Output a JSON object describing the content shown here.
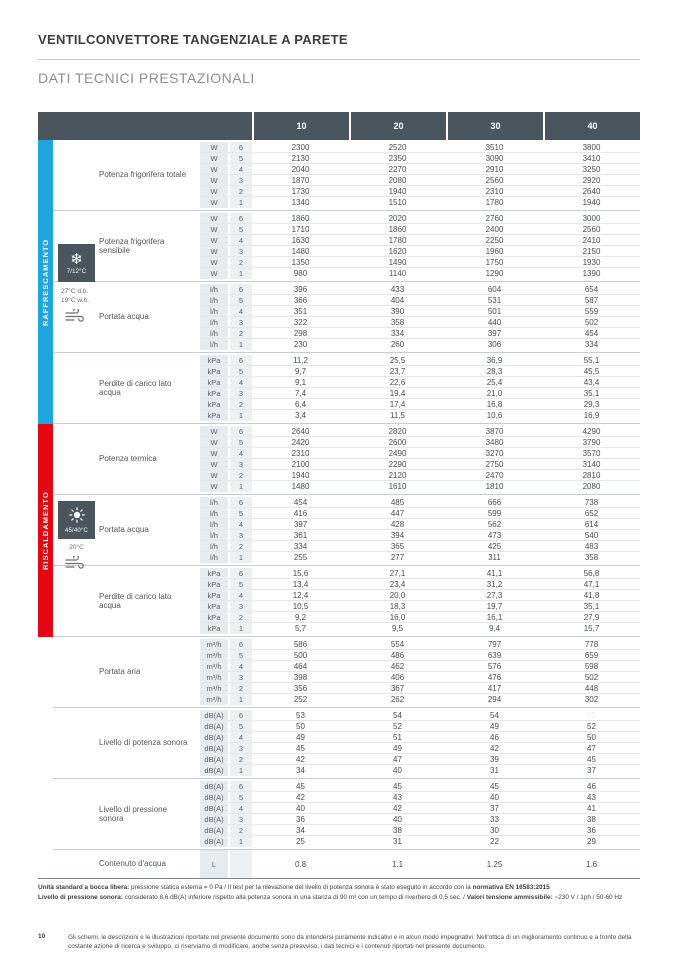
{
  "page": {
    "title": "VENTILCONVETTORE TANGENZIALE A PARETE",
    "subtitle": "DATI TECNICI PRESTAZIONALI",
    "page_number": "10",
    "disclaimer": "Gli schemi, le descrizioni e le illustrazioni riportate nel presente documento sono da intendersi puramente indicativi e in alcun modo impegnativi. Nell'ottica di un miglioramento continuo e a fronte della costante azione di ricerca e sviluppo, ci riserviamo di modificare, anche senza preavviso, i dati tecnici e i contenuti riportati nel presente documento."
  },
  "colors": {
    "cooling_accent": "#1fa5de",
    "heating_accent": "#e30613",
    "header_slate": "#4b555e",
    "unit_column_bg": "#e7ebee"
  },
  "icons": {
    "cooling": "snowflake-icon",
    "heating": "sun-icon",
    "air": "wind-icon"
  },
  "cooling": {
    "label": "RAFFRESCAMENTO",
    "box_temp": "7/12°C",
    "cond1": "27°C d.b.",
    "cond2": "19°C w.b."
  },
  "heating": {
    "label": "RISCALDAMENTO",
    "box_temp": "45/40°C",
    "cond1": "20°C"
  },
  "table": {
    "columns": [
      "10",
      "20",
      "30",
      "40"
    ],
    "speeds": [
      "6",
      "5",
      "4",
      "3",
      "2",
      "1"
    ],
    "sections": [
      {
        "group": "cooling",
        "label": "Potenza frigorifera totale",
        "unit": "W",
        "rows": [
          [
            "2300",
            "2520",
            "3510",
            "3800"
          ],
          [
            "2130",
            "2350",
            "3090",
            "3410"
          ],
          [
            "2040",
            "2270",
            "2910",
            "3250"
          ],
          [
            "1870",
            "2080",
            "2560",
            "2920"
          ],
          [
            "1730",
            "1940",
            "2310",
            "2640"
          ],
          [
            "1340",
            "1510",
            "1780",
            "1940"
          ]
        ]
      },
      {
        "group": "cooling",
        "label": "Potenza frigorifera sensibile",
        "unit": "W",
        "rows": [
          [
            "1860",
            "2020",
            "2760",
            "3000"
          ],
          [
            "1710",
            "1860",
            "2400",
            "2560"
          ],
          [
            "1630",
            "1780",
            "2250",
            "2410"
          ],
          [
            "1480",
            "1620",
            "1960",
            "2150"
          ],
          [
            "1350",
            "1490",
            "1750",
            "1930"
          ],
          [
            "980",
            "1140",
            "1290",
            "1390"
          ]
        ]
      },
      {
        "group": "cooling",
        "label": "Portata acqua",
        "unit": "l/h",
        "rows": [
          [
            "396",
            "433",
            "604",
            "654"
          ],
          [
            "366",
            "404",
            "531",
            "587"
          ],
          [
            "351",
            "390",
            "501",
            "559"
          ],
          [
            "322",
            "358",
            "440",
            "502"
          ],
          [
            "298",
            "334",
            "397",
            "454"
          ],
          [
            "230",
            "260",
            "306",
            "334"
          ]
        ]
      },
      {
        "group": "cooling",
        "label": "Perdite di carico lato acqua",
        "unit": "kPa",
        "rows": [
          [
            "11,2",
            "25,5",
            "36,9",
            "55,1"
          ],
          [
            "9,7",
            "23,7",
            "28,3",
            "45,5"
          ],
          [
            "9,1",
            "22,6",
            "25,4",
            "43,4"
          ],
          [
            "7,4",
            "19,4",
            "21,0",
            "35,1"
          ],
          [
            "6,4",
            "17,4",
            "16,8",
            "29,3"
          ],
          [
            "3,4",
            "11,5",
            "10,6",
            "16,9"
          ]
        ]
      },
      {
        "group": "heating",
        "label": "Potenza termica",
        "unit": "W",
        "rows": [
          [
            "2640",
            "2820",
            "3870",
            "4290"
          ],
          [
            "2420",
            "2600",
            "3480",
            "3790"
          ],
          [
            "2310",
            "2490",
            "3270",
            "3570"
          ],
          [
            "2100",
            "2290",
            "2750",
            "3140"
          ],
          [
            "1940",
            "2120",
            "2470",
            "2810"
          ],
          [
            "1480",
            "1610",
            "1810",
            "2080"
          ]
        ]
      },
      {
        "group": "heating",
        "label": "Portata acqua",
        "unit": "l/h",
        "rows": [
          [
            "454",
            "485",
            "666",
            "738"
          ],
          [
            "416",
            "447",
            "599",
            "652"
          ],
          [
            "397",
            "428",
            "562",
            "614"
          ],
          [
            "361",
            "394",
            "473",
            "540"
          ],
          [
            "334",
            "365",
            "425",
            "483"
          ],
          [
            "255",
            "277",
            "311",
            "358"
          ]
        ]
      },
      {
        "group": "heating",
        "label": "Perdite di carico lato acqua",
        "unit": "kPa",
        "rows": [
          [
            "15,6",
            "27,1",
            "41,1",
            "56,8"
          ],
          [
            "13,4",
            "23,4",
            "31,2",
            "47,1"
          ],
          [
            "12,4",
            "20,0",
            "27,3",
            "41,8"
          ],
          [
            "10,5",
            "18,3",
            "19,7",
            "35,1"
          ],
          [
            "9,2",
            "16,0",
            "16,1",
            "27,9"
          ],
          [
            "5,7",
            "9,5",
            "9,4",
            "15,7"
          ]
        ]
      },
      {
        "group": "none",
        "label": "Portata aria",
        "unit": "m³/h",
        "rows": [
          [
            "586",
            "554",
            "797",
            "778"
          ],
          [
            "500",
            "486",
            "639",
            "659"
          ],
          [
            "464",
            "462",
            "576",
            "598"
          ],
          [
            "398",
            "406",
            "476",
            "502"
          ],
          [
            "356",
            "367",
            "417",
            "448"
          ],
          [
            "252",
            "262",
            "294",
            "302"
          ]
        ]
      },
      {
        "group": "none",
        "label": "Livello di potenza sonora",
        "unit": "dB(A)",
        "faint_cells": [
          [
            0,
            3
          ]
        ],
        "rows": [
          [
            "53",
            "54",
            "54",
            "55"
          ],
          [
            "50",
            "52",
            "49",
            "52"
          ],
          [
            "49",
            "51",
            "46",
            "50"
          ],
          [
            "45",
            "49",
            "42",
            "47"
          ],
          [
            "42",
            "47",
            "39",
            "45"
          ],
          [
            "34",
            "40",
            "31",
            "37"
          ]
        ]
      },
      {
        "group": "none",
        "label": "Livello di pressione sonora",
        "unit": "dB(A)",
        "rows": [
          [
            "45",
            "45",
            "45",
            "46"
          ],
          [
            "42",
            "43",
            "40",
            "43"
          ],
          [
            "40",
            "42",
            "37",
            "41"
          ],
          [
            "36",
            "40",
            "33",
            "38"
          ],
          [
            "34",
            "38",
            "30",
            "36"
          ],
          [
            "25",
            "31",
            "22",
            "29"
          ]
        ]
      }
    ],
    "water_content": {
      "label": "Contenuto d'acqua",
      "unit": "L",
      "values": [
        "0.8",
        "1.1",
        "1.25",
        "1.6"
      ]
    }
  },
  "notes": {
    "line1_bold1": "Unità standard a bocca libera:",
    "line1_text1": " pressione statica esterna = 0 Pa / Il test per la rilevazione del livello di potenza sonora è stato eseguito in accordo con la ",
    "line1_bold2": "normativa EN 16583:2015",
    "line2_bold1": "Livello di pressione sonora:",
    "line2_text1": " considerato 8,6 dB(A) inferiore rispetto alla potenza sonora in una stanza di 90 m³ con un tempo di riverbero di 0,5 sec. / ",
    "line2_bold2": "Valori tensione ammissibile:",
    "line2_text2": " ~230 V / 1ph / 50-60 Hz"
  }
}
